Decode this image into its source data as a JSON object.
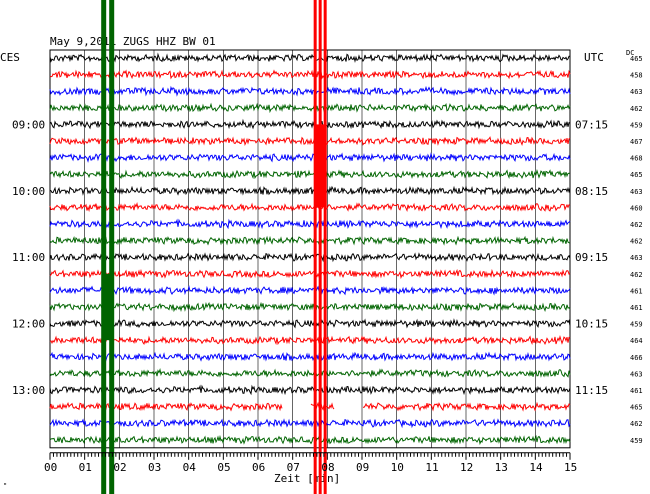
{
  "header": {
    "title": "May 9,2011   ZUGS HHZ BW 01",
    "left_tz": "CES",
    "right_tz": "UTC",
    "dc_label": "DC"
  },
  "footer": {
    "xlabel": "Zeit [min]",
    "corner_mark": "\""
  },
  "chart_data": {
    "type": "line",
    "title": "May 9,2011   ZUGS HHZ BW 01",
    "xlabel": "Zeit [min]",
    "ylabel": "",
    "xlim": [
      0,
      15
    ],
    "x_ticks": [
      "00",
      "01",
      "02",
      "03",
      "04",
      "05",
      "06",
      "07",
      "08",
      "09",
      "10",
      "11",
      "12",
      "13",
      "14",
      "15"
    ],
    "rows": 24,
    "row_colors": [
      "#000000",
      "#ff0000",
      "#0000ff",
      "#006400"
    ],
    "left_time_labels": [
      {
        "row": 4,
        "label": "09:00"
      },
      {
        "row": 8,
        "label": "10:00"
      },
      {
        "row": 12,
        "label": "11:00"
      },
      {
        "row": 16,
        "label": "12:00"
      },
      {
        "row": 20,
        "label": "13:00"
      }
    ],
    "right_time_labels": [
      {
        "row": 4,
        "label": "07:15"
      },
      {
        "row": 8,
        "label": "08:15"
      },
      {
        "row": 12,
        "label": "09:15"
      },
      {
        "row": 16,
        "label": "10:15"
      },
      {
        "row": 20,
        "label": "11:15"
      }
    ],
    "dc_values": [
      "465",
      "458",
      "463",
      "462",
      "459",
      "467",
      "468",
      "465",
      "463",
      "460",
      "462",
      "462",
      "463",
      "462",
      "461",
      "461",
      "459",
      "464",
      "466",
      "463",
      "461",
      "465",
      "462",
      "459"
    ],
    "events": [
      {
        "color": "#006400",
        "minute": 1.65,
        "rows": [
          0,
          23
        ],
        "kind": "green-band"
      },
      {
        "color": "#ff0000",
        "minute": 7.75,
        "rows": [
          0,
          23
        ],
        "kind": "red-band"
      }
    ],
    "gaps": [
      {
        "row": 21,
        "from_minute": 6.7,
        "to_minute": 7.5
      },
      {
        "row": 21,
        "from_minute": 8.2,
        "to_minute": 9.0
      }
    ],
    "grid": true
  },
  "colors": {
    "background": "#ffffff",
    "grid": "#000000"
  }
}
